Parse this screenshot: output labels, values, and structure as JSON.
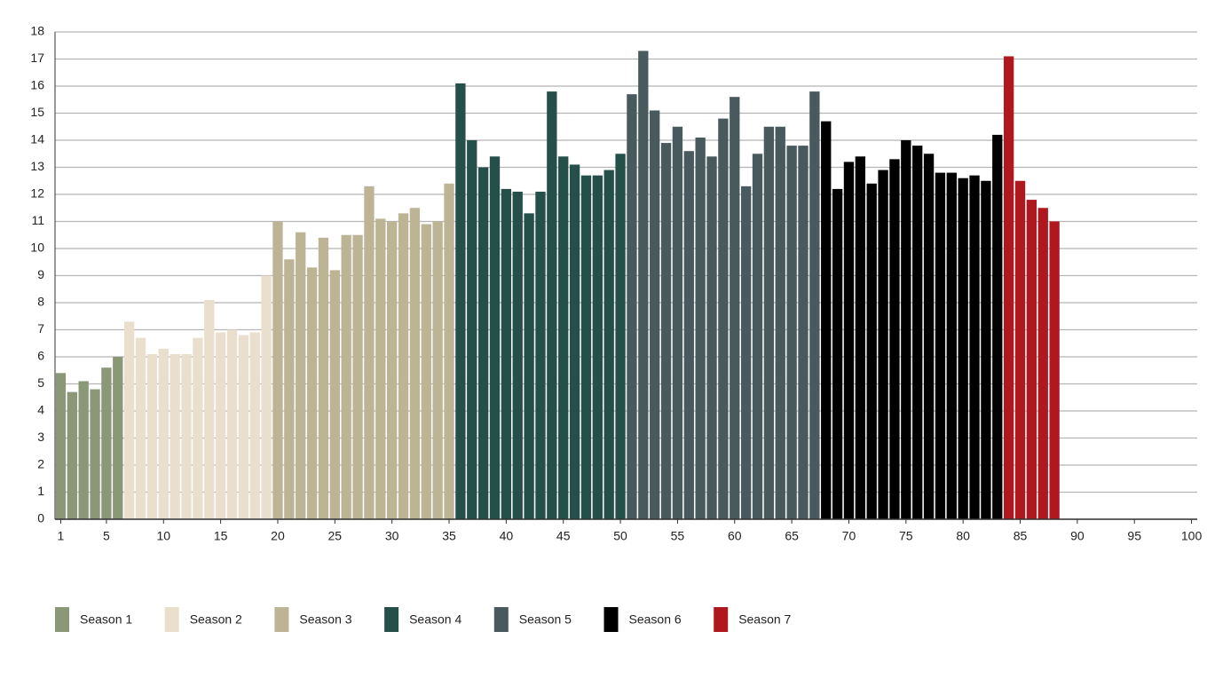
{
  "chart_data": {
    "type": "bar",
    "xlim": [
      0.5,
      100.5
    ],
    "ylim": [
      0,
      18
    ],
    "xticks": [
      1,
      5,
      10,
      15,
      20,
      25,
      30,
      35,
      40,
      45,
      50,
      55,
      60,
      65,
      70,
      75,
      80,
      85,
      90,
      95,
      100
    ],
    "yticks": [
      0,
      1,
      2,
      3,
      4,
      5,
      6,
      7,
      8,
      9,
      10,
      11,
      12,
      13,
      14,
      15,
      16,
      17,
      18
    ],
    "grid": true,
    "legend": "bottom",
    "series": [
      {
        "name": "Season 1",
        "color": "#8a9878",
        "x": [
          1,
          2,
          3,
          4,
          5,
          6
        ],
        "values": [
          5.4,
          4.7,
          5.1,
          4.8,
          5.6,
          6.0
        ]
      },
      {
        "name": "Season 2",
        "color": "#eadfcc",
        "x": [
          7,
          8,
          9,
          10,
          11,
          12,
          13,
          14,
          15,
          16,
          17,
          18,
          19
        ],
        "values": [
          7.3,
          6.7,
          6.1,
          6.3,
          6.1,
          6.1,
          6.7,
          8.1,
          6.9,
          7.0,
          6.8,
          6.9,
          9.0
        ]
      },
      {
        "name": "Season 3",
        "color": "#bdb496",
        "x": [
          20,
          21,
          22,
          23,
          24,
          25,
          26,
          27,
          28,
          29,
          30,
          31,
          32,
          33,
          34,
          35
        ],
        "values": [
          11.0,
          9.6,
          10.6,
          9.3,
          10.4,
          9.2,
          10.5,
          10.5,
          12.3,
          11.1,
          11.0,
          11.3,
          11.5,
          10.9,
          11.0,
          12.4
        ]
      },
      {
        "name": "Season 4",
        "color": "#25504a",
        "x": [
          36,
          37,
          38,
          39,
          40,
          41,
          42,
          43,
          44,
          45,
          46,
          47,
          48,
          49,
          50
        ],
        "values": [
          16.1,
          14.0,
          13.0,
          13.4,
          12.2,
          12.1,
          11.3,
          12.1,
          15.8,
          13.4,
          13.1,
          12.7,
          12.7,
          12.9,
          13.5
        ]
      },
      {
        "name": "Season 5",
        "color": "#485a5e",
        "x": [
          51,
          52,
          53,
          54,
          55,
          56,
          57,
          58,
          59,
          60,
          61,
          62,
          63,
          64,
          65,
          66,
          67
        ],
        "values": [
          15.7,
          17.3,
          15.1,
          13.9,
          14.5,
          13.6,
          14.1,
          13.4,
          14.8,
          15.6,
          12.3,
          13.5,
          14.5,
          14.5,
          13.8,
          13.8,
          15.8
        ]
      },
      {
        "name": "Season 6",
        "color": "#000000",
        "x": [
          68,
          69,
          70,
          71,
          72,
          73,
          74,
          75,
          76,
          77,
          78,
          79,
          80,
          81,
          82,
          83
        ],
        "values": [
          14.7,
          12.2,
          13.2,
          13.4,
          12.4,
          12.9,
          13.3,
          14.0,
          13.8,
          13.5,
          12.8,
          12.8,
          12.6,
          12.7,
          12.5,
          14.2
        ]
      },
      {
        "name": "Season 7",
        "color": "#b01820",
        "x": [
          84,
          85,
          86,
          87,
          88
        ],
        "values": [
          17.1,
          12.5,
          11.8,
          11.5,
          11.0
        ]
      }
    ]
  }
}
